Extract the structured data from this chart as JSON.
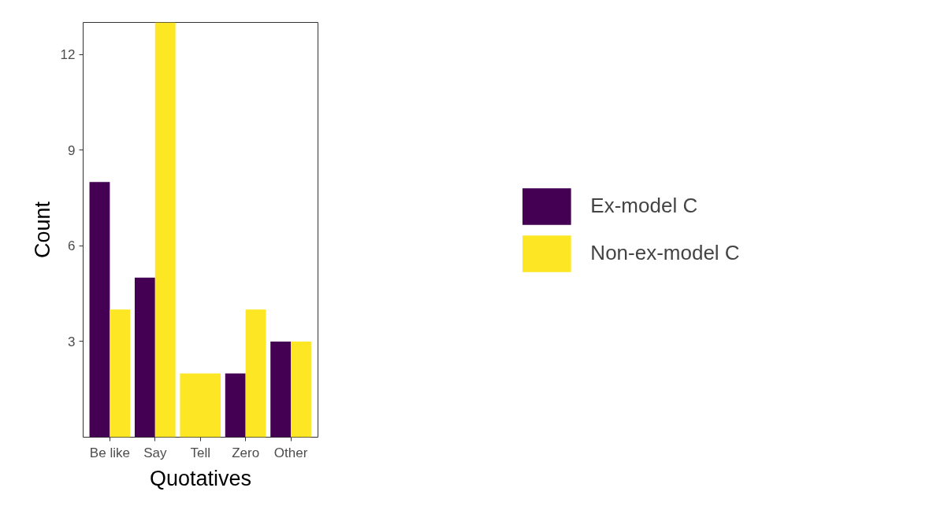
{
  "chart_data": {
    "type": "bar",
    "xlabel": "Quotatives",
    "ylabel": "Count",
    "categories": [
      "Be like",
      "Say",
      "Tell",
      "Zero",
      "Other"
    ],
    "series": [
      {
        "name": "Ex-model C",
        "color": "#440154",
        "values": [
          8,
          5,
          null,
          2,
          3
        ]
      },
      {
        "name": "Non-ex-model C",
        "color": "#fde725",
        "values": [
          4,
          13,
          2,
          4,
          3
        ]
      }
    ],
    "ylim": [
      0,
      13
    ],
    "yticks": [
      3,
      6,
      9,
      12
    ],
    "grid": false,
    "legend": "right"
  }
}
